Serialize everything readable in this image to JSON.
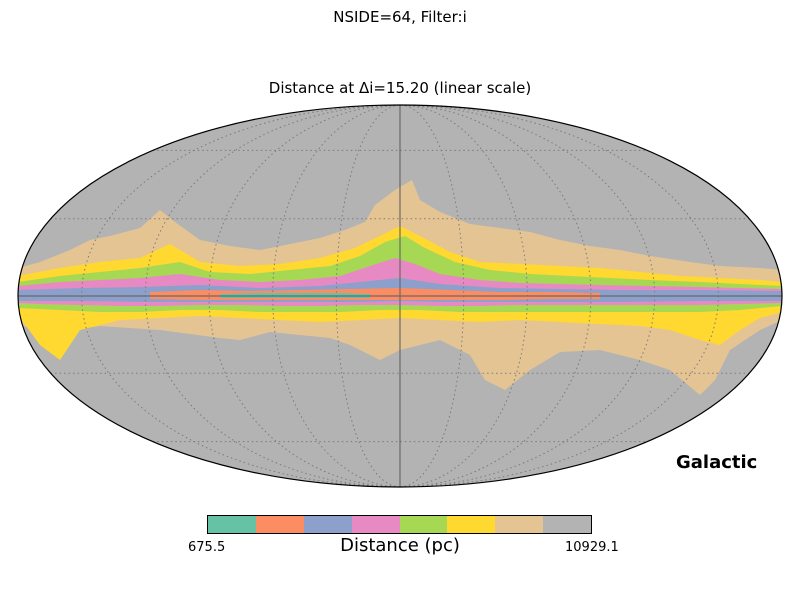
{
  "figure": {
    "suptitle": "NSIDE=64, Filter:i",
    "title": "Distance at Δi=15.20 (linear scale)",
    "coord_system": "Galactic"
  },
  "chart_data": {
    "type": "heatmap",
    "projection": "mollweide",
    "title": "Distance at Δi=15.20 (linear scale)",
    "graticule": true,
    "colorbar": {
      "label": "Distance (pc)",
      "min_label": "675.5",
      "max_label": "10929.1",
      "min": 675.5,
      "max": 10929.1,
      "colors": [
        "#66c2a5",
        "#fc8d62",
        "#8da0cb",
        "#e78ac3",
        "#a6d854",
        "#ffd92f",
        "#e5c494",
        "#b3b3b3"
      ]
    },
    "background_color": "#b3b3b3"
  }
}
